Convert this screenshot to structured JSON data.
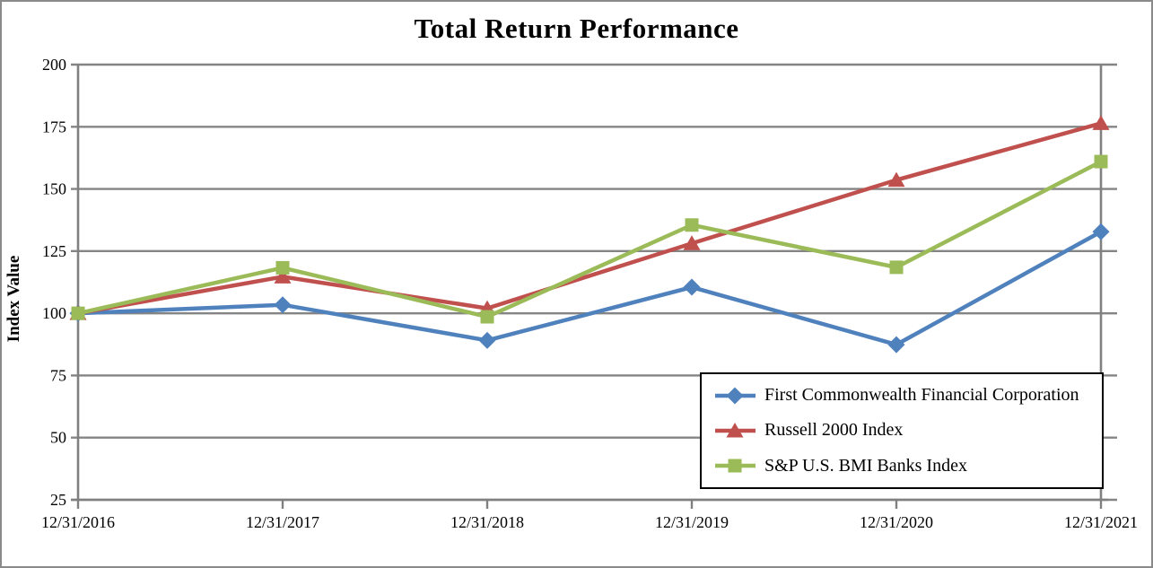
{
  "chart_data": {
    "type": "line",
    "title": "Total Return Performance",
    "ylabel": "Index Value",
    "xlabel": "",
    "x_categories": [
      "12/31/2016",
      "12/31/2017",
      "12/31/2018",
      "12/31/2019",
      "12/31/2020",
      "12/31/2021"
    ],
    "y_ticks": [
      200,
      175,
      150,
      125,
      100,
      75,
      50,
      25
    ],
    "ylim": [
      25,
      200
    ],
    "grid": "horizontal-only",
    "legend_position": "inside-bottom-right",
    "axis_color": "#808080",
    "gridline_color": "#848484",
    "series": [
      {
        "name": "First Commonwealth Financial Corporation",
        "color": "#4F81BD",
        "marker": "diamond",
        "values": [
          100.0,
          103.4,
          89.1,
          110.5,
          87.4,
          132.8
        ]
      },
      {
        "name": "Russell 2000 Index",
        "color": "#C0504D",
        "marker": "triangle",
        "values": [
          100.0,
          114.7,
          102.0,
          128.1,
          153.6,
          176.4
        ]
      },
      {
        "name": "S&P U.S. BMI Banks Index",
        "color": "#9BBB59",
        "marker": "square",
        "values": [
          100.0,
          118.3,
          98.6,
          135.5,
          118.5,
          161.0
        ]
      }
    ]
  }
}
